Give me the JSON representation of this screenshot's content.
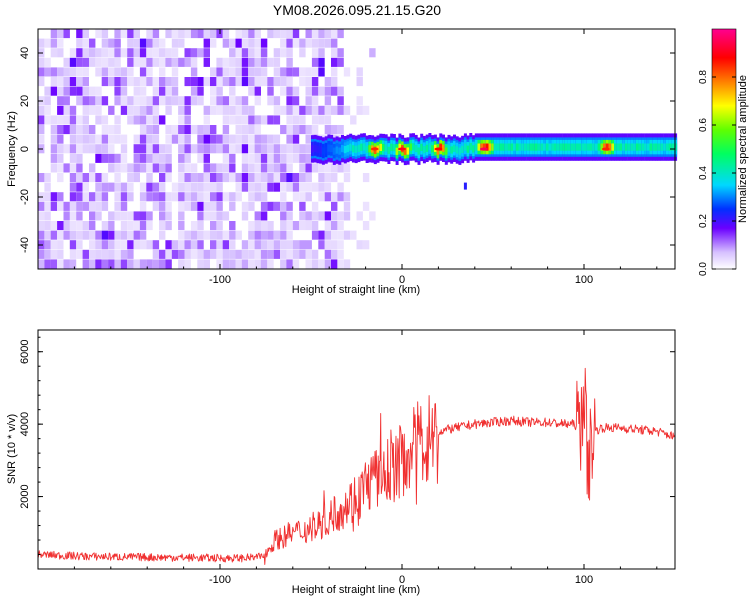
{
  "title": "YM08.2026.095.21.15.G20",
  "colors": {
    "snr_line": "#f03030",
    "axis": "#000000",
    "background": "#ffffff"
  },
  "chart_data": [
    {
      "type": "heatmap",
      "xlabel": "Height of straight line (km)",
      "ylabel": "Frequency (Hz)",
      "xlim": [
        -200,
        150
      ],
      "ylim": [
        -50,
        50
      ],
      "xticks": [
        -100,
        0,
        100
      ],
      "yticks": [
        -40,
        -20,
        0,
        20,
        40
      ],
      "colorbar": {
        "label": "Normalized spectral amplitude",
        "range": [
          0,
          1
        ],
        "ticks": [
          0.0,
          0.2,
          0.4,
          0.6,
          0.8
        ],
        "tick_labels": [
          "0.0",
          "0.2",
          "0.4",
          "0.6",
          "0.8"
        ]
      },
      "features": {
        "noise_region_x": [
          -200,
          -25
        ],
        "noise_amplitude": 0.1,
        "signal_band": {
          "x_start": -50,
          "x_end": 150,
          "center_hz": 0,
          "halfwidth_hz": 3
        },
        "signal_peaks": [
          {
            "x": -15,
            "amplitude": 0.85
          },
          {
            "x": 0,
            "amplitude": 0.9
          },
          {
            "x": 20,
            "amplitude": 0.88
          },
          {
            "x": 45,
            "amplitude": 0.95
          },
          {
            "x": 112,
            "amplitude": 0.85
          }
        ],
        "spur": {
          "x": 34,
          "y": -16
        }
      }
    },
    {
      "type": "line",
      "xlabel": "Height of straight line (km)",
      "ylabel": "SNR (10 * v/v)",
      "xlim": [
        -200,
        150
      ],
      "ylim": [
        0,
        6600
      ],
      "xticks": [
        -100,
        0,
        100
      ],
      "yticks": [
        2000,
        4000,
        6000
      ],
      "series": [
        {
          "x": [
            -200,
            -175,
            -150,
            -125,
            -100,
            -90,
            -80,
            -75,
            -70,
            -60,
            -50,
            -40,
            -30,
            -25,
            -20,
            -15,
            -10,
            -5,
            0,
            5,
            10,
            20,
            30,
            40,
            50,
            60,
            70,
            80,
            90,
            95,
            98,
            100,
            102,
            105,
            110,
            120,
            130,
            140,
            150
          ],
          "y": [
            400,
            350,
            330,
            320,
            300,
            300,
            320,
            400,
            800,
            1000,
            1100,
            1400,
            1800,
            2000,
            2300,
            2500,
            2600,
            2800,
            3000,
            3300,
            3500,
            3800,
            3900,
            4000,
            4050,
            4100,
            4050,
            4050,
            4000,
            4000,
            3800,
            5200,
            2800,
            3800,
            3900,
            3900,
            3850,
            3800,
            3650
          ]
        }
      ]
    }
  ]
}
